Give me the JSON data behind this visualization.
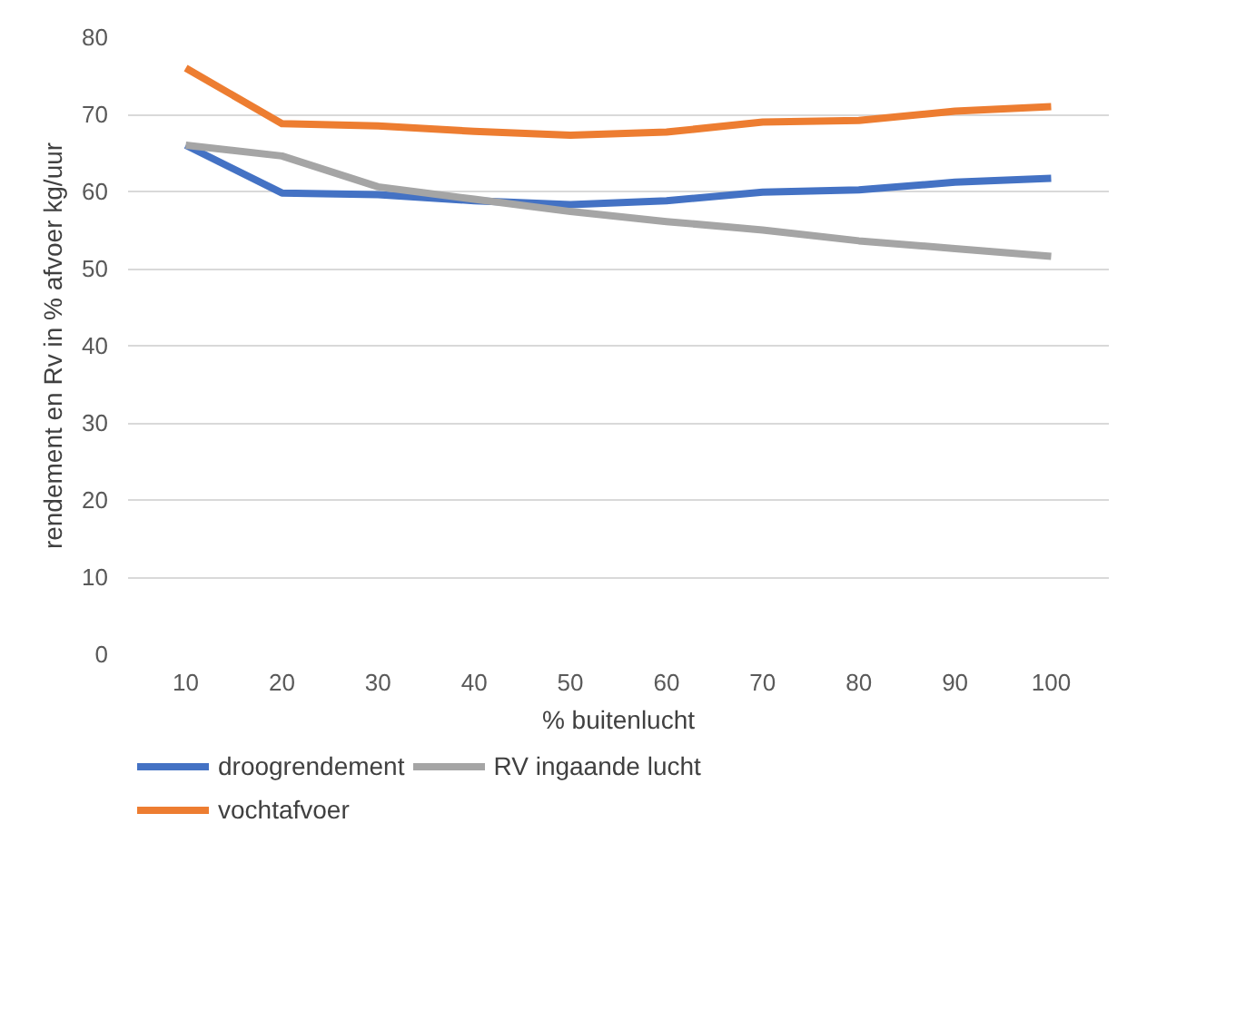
{
  "chart_data": {
    "type": "line",
    "xlabel": "% buitenlucht",
    "ylabel": "rendement en Rv in % afvoer kg/uur",
    "categories": [
      "10",
      "20",
      "30",
      "40",
      "50",
      "60",
      "70",
      "80",
      "90",
      "100"
    ],
    "series": [
      {
        "name": "droogrendement",
        "color": "#4472c4",
        "values": [
          66,
          59.8,
          59.6,
          58.8,
          58.3,
          58.8,
          59.9,
          60.2,
          61.2,
          61.7
        ]
      },
      {
        "name": "RV ingaande lucht",
        "color": "#a5a5a5",
        "values": [
          66,
          64.6,
          60.6,
          59,
          57.4,
          56.1,
          55,
          53.6,
          52.6,
          51.6
        ]
      },
      {
        "name": "vochtafvoer",
        "color": "#ed7d31",
        "values": [
          76,
          68.8,
          68.5,
          67.8,
          67.3,
          67.7,
          69,
          69.2,
          70.4,
          71
        ]
      }
    ],
    "ylim": [
      0,
      80
    ],
    "yticks": [
      0,
      10,
      20,
      30,
      40,
      50,
      60,
      70,
      80
    ],
    "grid": "y",
    "legend": "bottom",
    "marker": "none",
    "line_style": "solid"
  }
}
